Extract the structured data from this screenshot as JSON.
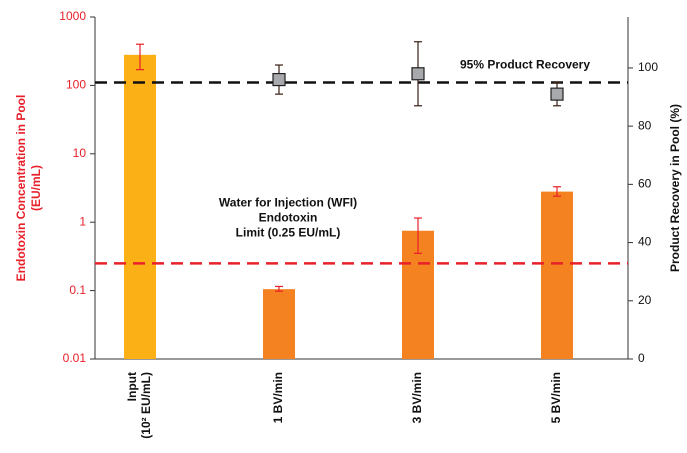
{
  "chart_data": {
    "type": "bar",
    "categories": [
      [
        "Input",
        "(10² EU/mL)"
      ],
      [
        "1 BV/min"
      ],
      [
        "3 BV/min"
      ],
      [
        "5 BV/min"
      ]
    ],
    "ylabel": [
      "Endotoxin Concentration in Pool",
      "(EU/mL)"
    ],
    "y2label": "Product Recovery in Pool (%)",
    "ylog": true,
    "ylim": [
      0.01,
      1000
    ],
    "yticks": [
      0.01,
      0.1,
      1,
      10,
      100,
      1000
    ],
    "y2lim": [
      0,
      117.5
    ],
    "y2ticks": [
      0,
      20,
      40,
      60,
      80,
      100
    ],
    "series": [
      {
        "values": [
          280,
          0.105,
          0.75,
          2.8
        ],
        "err_low": [
          170,
          0.098,
          0.35,
          2.4
        ],
        "err_high": [
          400,
          0.115,
          1.15,
          3.3
        ],
        "colors": [
          "#fbb116",
          "#f58220",
          "#f58220",
          "#f58220"
        ],
        "error_color": "#e8202a"
      },
      {
        "axis": "y2",
        "type": "scatter",
        "values": [
          null,
          96,
          98,
          91
        ],
        "errors": [
          null,
          5,
          11,
          4
        ],
        "color": "#a7a9ac",
        "error_color": "#3a1f14"
      }
    ],
    "reference_lines": [
      {
        "axis": "y2",
        "value": 95,
        "color": "#111111",
        "label": [
          "95% Product Recovery"
        ]
      },
      {
        "axis": "y",
        "value": 0.25,
        "color": "#e8202a",
        "label": [
          "Water for Injection (WFI)",
          "Endotoxin",
          "Limit (0.25 EU/mL)"
        ]
      }
    ]
  }
}
